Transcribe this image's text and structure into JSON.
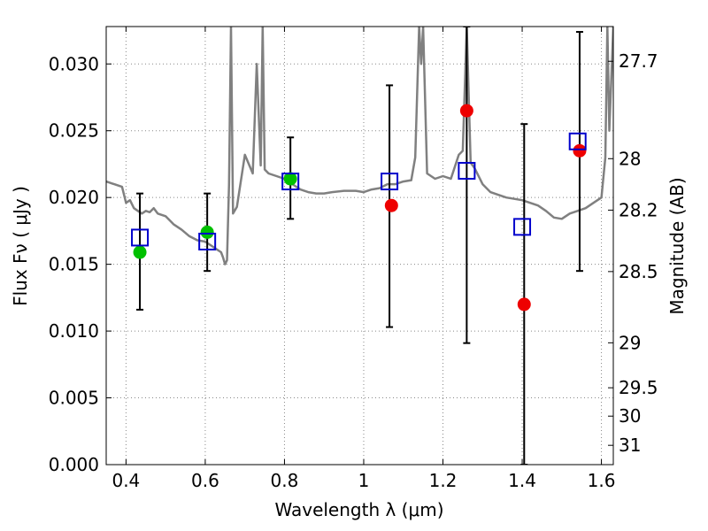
{
  "chart_data": {
    "type": "scatter",
    "xlabel": "Wavelength  λ (μm)",
    "ylabel": "Flux  Fν  ( μJy )",
    "y2label": "Magnitude (AB)",
    "xlim": [
      0.35,
      1.63
    ],
    "ylim": [
      0.0,
      0.0328
    ],
    "grid": true,
    "x_ticks": [
      0.4,
      0.6,
      0.8,
      1.0,
      1.2,
      1.4,
      1.6
    ],
    "x_tick_labels": [
      "0.4",
      "0.6",
      "0.8",
      "1",
      "1.2",
      "1.4",
      "1.6"
    ],
    "y_ticks": [
      0.0,
      0.005,
      0.01,
      0.015,
      0.02,
      0.025,
      0.03
    ],
    "y_tick_labels": [
      "0.000",
      "0.005",
      "0.010",
      "0.015",
      "0.020",
      "0.025",
      "0.030"
    ],
    "y2_ticks": [
      {
        "mag": 27.7,
        "label": "27.7"
      },
      {
        "mag": 28.0,
        "label": "28"
      },
      {
        "mag": 28.2,
        "label": "28.2"
      },
      {
        "mag": 28.5,
        "label": "28.5"
      },
      {
        "mag": 29.0,
        "label": "29"
      },
      {
        "mag": 29.5,
        "label": "29.5"
      },
      {
        "mag": 30.0,
        "label": "30"
      },
      {
        "mag": 31.0,
        "label": "31"
      }
    ],
    "colors": {
      "model": "#808080",
      "green": "#00c000",
      "red": "#ee0000",
      "square": "#0000cc",
      "errorbar": "#000000",
      "grid": "#888888"
    },
    "series": [
      {
        "name": "model spectrum",
        "style": "line",
        "x": [
          0.35,
          0.37,
          0.39,
          0.4,
          0.41,
          0.42,
          0.43,
          0.44,
          0.45,
          0.46,
          0.47,
          0.48,
          0.5,
          0.52,
          0.54,
          0.56,
          0.58,
          0.6,
          0.61,
          0.62,
          0.63,
          0.64,
          0.645,
          0.65,
          0.655,
          0.66,
          0.665,
          0.67,
          0.68,
          0.7,
          0.72,
          0.73,
          0.74,
          0.745,
          0.75,
          0.76,
          0.78,
          0.8,
          0.82,
          0.84,
          0.86,
          0.88,
          0.9,
          0.92,
          0.95,
          0.98,
          1.0,
          1.02,
          1.04,
          1.06,
          1.08,
          1.1,
          1.12,
          1.13,
          1.14,
          1.145,
          1.15,
          1.16,
          1.18,
          1.2,
          1.22,
          1.24,
          1.25,
          1.26,
          1.27,
          1.28,
          1.3,
          1.32,
          1.34,
          1.36,
          1.38,
          1.4,
          1.42,
          1.44,
          1.46,
          1.48,
          1.5,
          1.52,
          1.54,
          1.56,
          1.58,
          1.6,
          1.61,
          1.615,
          1.62,
          1.63
        ],
        "y": [
          0.0212,
          0.021,
          0.0208,
          0.0196,
          0.0198,
          0.0192,
          0.019,
          0.0188,
          0.019,
          0.0189,
          0.0192,
          0.0188,
          0.0186,
          0.018,
          0.0176,
          0.0171,
          0.0168,
          0.0167,
          0.0165,
          0.0163,
          0.0161,
          0.0159,
          0.0155,
          0.015,
          0.0153,
          0.021,
          0.0328,
          0.0188,
          0.0193,
          0.0232,
          0.0218,
          0.03,
          0.0224,
          0.0328,
          0.0221,
          0.0218,
          0.0216,
          0.0214,
          0.021,
          0.0206,
          0.0204,
          0.0203,
          0.0203,
          0.0204,
          0.0205,
          0.0205,
          0.0204,
          0.0206,
          0.0207,
          0.021,
          0.021,
          0.0212,
          0.0213,
          0.023,
          0.0328,
          0.03,
          0.0328,
          0.0218,
          0.0214,
          0.0216,
          0.0214,
          0.0232,
          0.0235,
          0.0328,
          0.0226,
          0.0222,
          0.021,
          0.0204,
          0.0202,
          0.02,
          0.0199,
          0.0198,
          0.0196,
          0.0194,
          0.019,
          0.0185,
          0.0184,
          0.0188,
          0.019,
          0.0192,
          0.0196,
          0.02,
          0.023,
          0.0328,
          0.025,
          0.0328
        ]
      },
      {
        "name": "green circles",
        "style": "circle",
        "x": [
          0.435,
          0.605,
          0.815
        ],
        "y": [
          0.0159,
          0.0174,
          0.0214
        ]
      },
      {
        "name": "red circles",
        "style": "circle",
        "x": [
          1.07,
          1.26,
          1.405,
          1.545
        ],
        "y": [
          0.0194,
          0.0265,
          0.012,
          0.0235
        ]
      },
      {
        "name": "blue squares",
        "style": "square",
        "x": [
          0.435,
          0.605,
          0.815,
          1.065,
          1.26,
          1.4,
          1.54
        ],
        "y": [
          0.017,
          0.0167,
          0.0212,
          0.0212,
          0.022,
          0.0178,
          0.0242
        ]
      }
    ],
    "errorbars": [
      {
        "x": 0.435,
        "low": 0.0116,
        "high": 0.0203
      },
      {
        "x": 0.605,
        "low": 0.0145,
        "high": 0.0203
      },
      {
        "x": 0.815,
        "low": 0.0184,
        "high": 0.0245
      },
      {
        "x": 1.065,
        "low": 0.0103,
        "high": 0.0284
      },
      {
        "x": 1.26,
        "low": 0.0091,
        "high": 0.0328
      },
      {
        "x": 1.405,
        "low": 0.0,
        "high": 0.0255
      },
      {
        "x": 1.545,
        "low": 0.0145,
        "high": 0.0324
      }
    ]
  }
}
